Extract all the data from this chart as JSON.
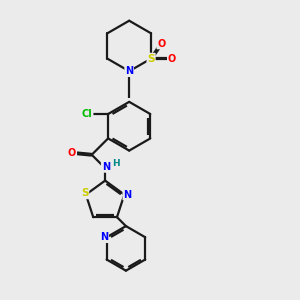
{
  "background_color": "#ebebeb",
  "bond_color": "#1a1a1a",
  "atom_colors": {
    "N": "#0000ff",
    "O": "#ff0000",
    "S": "#cccc00",
    "Cl": "#00bb00",
    "H": "#008888"
  },
  "figsize": [
    3.0,
    3.0
  ],
  "dpi": 100
}
